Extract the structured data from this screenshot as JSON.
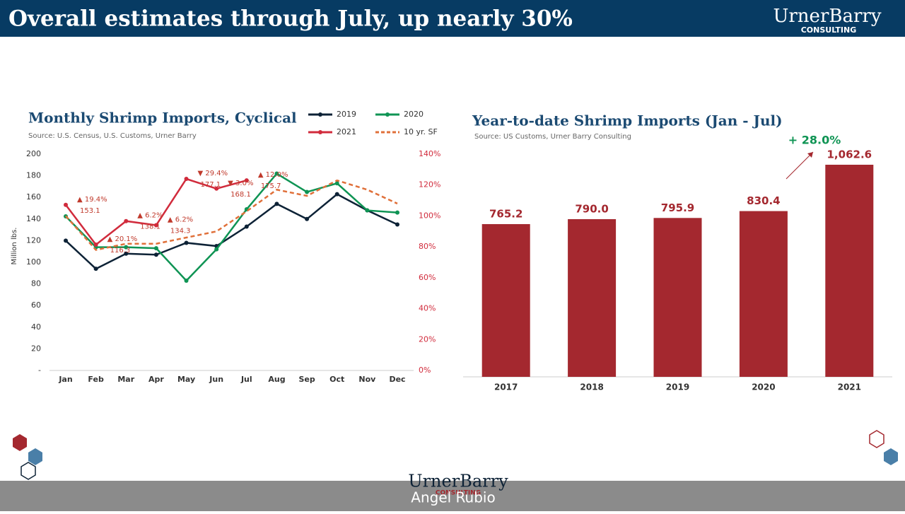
{
  "header": {
    "title": "Overall estimates through July, up nearly 30%",
    "logo": "UrnerBarry",
    "logo_sub": "CONSULTING"
  },
  "footer": {
    "logo": "UrnerBarry",
    "logo_sub": "CONSULTING",
    "presenter": "Angel Rubio"
  },
  "chart_data": [
    {
      "type": "line",
      "title": "Monthly Shrimp Imports, Cyclical",
      "subtitle": "Source: U.S. Census, U.S. Customs, Urner Barry",
      "y_label": "Million lbs.",
      "categories": [
        "Jan",
        "Feb",
        "Mar",
        "Apr",
        "May",
        "Jun",
        "Jul",
        "Aug",
        "Sep",
        "Oct",
        "Nov",
        "Dec"
      ],
      "ylim": [
        0,
        200
      ],
      "yticks": [
        {
          "value": 0,
          "label": "-"
        },
        20,
        40,
        60,
        80,
        100,
        120,
        140,
        160,
        180,
        200
      ],
      "y2lim": [
        0,
        140
      ],
      "y2ticks": [
        {
          "value": 0,
          "label": "0%"
        },
        {
          "value": 20,
          "label": "20%"
        },
        {
          "value": 40,
          "label": "40%"
        },
        {
          "value": 60,
          "label": "60%"
        },
        {
          "value": 80,
          "label": "80%"
        },
        {
          "value": 100,
          "label": "100%"
        },
        {
          "value": 120,
          "label": "120%"
        },
        {
          "value": 140,
          "label": "140%"
        }
      ],
      "series": [
        {
          "name": "2019",
          "color": "#0d2236",
          "values": [
            120,
            94,
            108,
            107,
            118,
            115,
            133,
            154,
            140,
            163,
            148,
            135
          ]
        },
        {
          "name": "2020",
          "color": "#0f9454",
          "values": [
            142.5,
            114,
            114,
            113,
            83,
            112,
            149,
            182,
            165,
            173,
            148,
            146
          ]
        },
        {
          "name": "2021",
          "color": "#d12b3c",
          "values": [
            153.1,
            116.3,
            138.1,
            134.3,
            177.1,
            168.1,
            175.7,
            null,
            null,
            null,
            null,
            null
          ],
          "change_labels": [
            "▲ 19.4%",
            "▲ 20.1%",
            "▲ 6.2%",
            "▲ 6.2%",
            "▼ 29.4%",
            "▼ 3.0%",
            "▲ 12.0%"
          ]
        },
        {
          "name": "10 yr. SF",
          "color": "#e0703a",
          "axis": "y2",
          "dashed": true,
          "values": [
            100,
            78,
            82,
            82,
            86,
            90,
            103,
            117,
            113,
            123,
            117,
            108
          ]
        }
      ]
    },
    {
      "type": "bar",
      "title": "Year-to-date Shrimp Imports (Jan - Jul)",
      "subtitle": "Source: US Customs, Urner Barry Consulting",
      "categories": [
        "2017",
        "2018",
        "2019",
        "2020",
        "2021"
      ],
      "values": [
        765.2,
        790.0,
        795.9,
        830.4,
        1062.6
      ],
      "value_labels": [
        "765.2",
        "790.0",
        "795.9",
        "830.4",
        "1,062.6"
      ],
      "color": "#a4282f",
      "ylim": [
        0,
        1062.6
      ],
      "annotation": "+ 28.0%"
    }
  ]
}
